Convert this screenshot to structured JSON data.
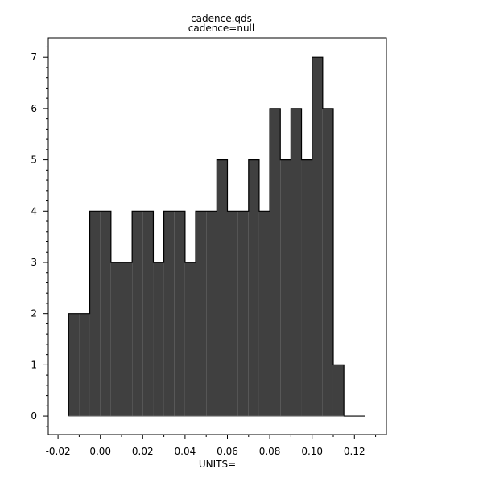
{
  "chart_data": {
    "type": "histogram-step",
    "title": "cadence.qds",
    "subtitle": "cadence=null",
    "xlabel": "UNITS=",
    "ylabel": "",
    "xlim": [
      -0.0246,
      0.1351
    ],
    "ylim": [
      -0.36,
      7.38
    ],
    "xticks": [
      -0.02,
      0.0,
      0.02,
      0.04,
      0.06,
      0.08,
      0.1,
      0.12
    ],
    "xtick_labels": [
      "-0.02",
      "0.00",
      "0.02",
      "0.04",
      "0.06",
      "0.08",
      "0.10",
      "0.12"
    ],
    "yticks": [
      0,
      1,
      2,
      3,
      4,
      5,
      6,
      7
    ],
    "ytick_labels": [
      "0",
      "1",
      "2",
      "3",
      "4",
      "5",
      "6",
      "7"
    ],
    "bin_width": 0.005,
    "bin_starts": [
      -0.015,
      -0.01,
      -0.005,
      0.0,
      0.005,
      0.01,
      0.015,
      0.02,
      0.025,
      0.03,
      0.035,
      0.04,
      0.045,
      0.05,
      0.055,
      0.06,
      0.065,
      0.07,
      0.075,
      0.08,
      0.085,
      0.09,
      0.095,
      0.1,
      0.105,
      0.11,
      0.115,
      0.12
    ],
    "values": [
      2,
      2,
      4,
      4,
      3,
      3,
      4,
      4,
      3,
      4,
      4,
      3,
      4,
      4,
      5,
      4,
      4,
      5,
      4,
      6,
      5,
      6,
      5,
      7,
      6,
      1,
      0,
      0
    ],
    "fill_color": "#404040",
    "grid": false,
    "legend": "none"
  }
}
